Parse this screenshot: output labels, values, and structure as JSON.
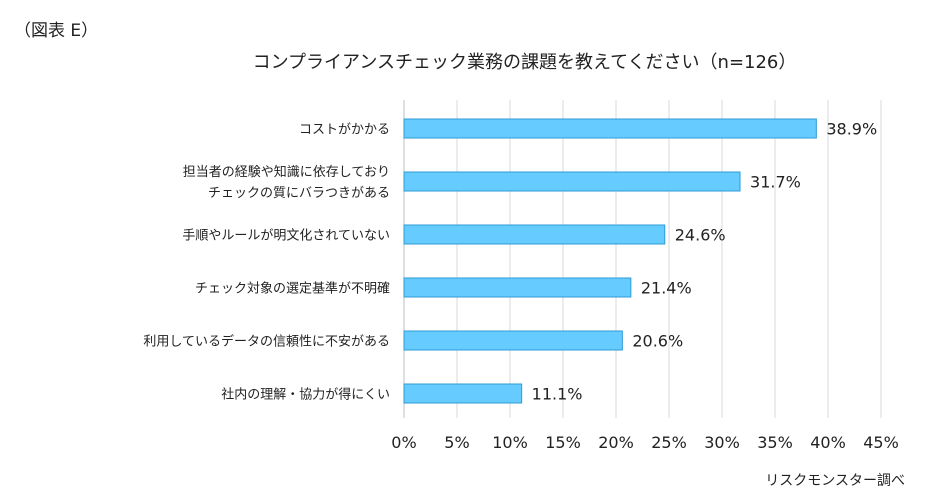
{
  "figure_label": "（図表 E）",
  "source_note": "リスクモンスター調べ",
  "chart_data": {
    "type": "bar",
    "orientation": "horizontal",
    "title": "コンプライアンスチェック業務の課題を教えてください（n=126）",
    "categories": [
      [
        "コストがかかる"
      ],
      [
        "担当者の経験や知識に依存しており",
        "チェックの質にバラつきがある"
      ],
      [
        "手順やルールが明文化されていない"
      ],
      [
        "チェック対象の選定基準が不明確"
      ],
      [
        "利用しているデータの信頼性に不安がある"
      ],
      [
        "社内の理解・協力が得にくい"
      ]
    ],
    "values": [
      38.9,
      31.7,
      24.6,
      21.4,
      20.6,
      11.1
    ],
    "value_labels": [
      "38.9%",
      "31.7%",
      "24.6%",
      "21.4%",
      "20.6%",
      "11.1%"
    ],
    "xlim": [
      0,
      45
    ],
    "xticks": [
      "0%",
      "5%",
      "10%",
      "15%",
      "20%",
      "25%",
      "30%",
      "35%",
      "40%",
      "45%"
    ],
    "grid": true,
    "legend": "none",
    "bar_color": "#66CCFF",
    "bar_edge_color": "#2E9BD6",
    "grid_color": "#D9D9D9"
  }
}
